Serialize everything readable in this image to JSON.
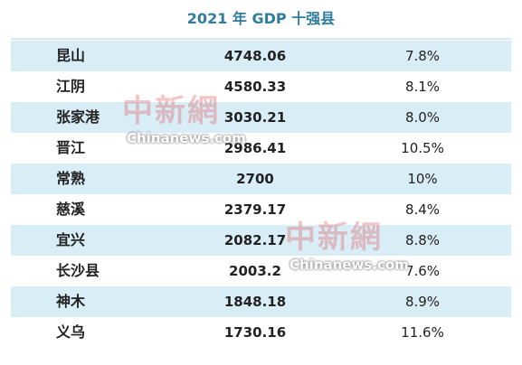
{
  "header": {
    "title": "2021 年 GDP 十强县"
  },
  "table": {
    "rows": [
      [
        "昆山",
        "4748.06",
        "7.8%"
      ],
      [
        "江阴",
        "4580.33",
        "8.1%"
      ],
      [
        "张家港",
        "3030.21",
        "8.0%"
      ],
      [
        "晋江",
        "2986.41",
        "10.5%"
      ],
      [
        "常熟",
        "2700",
        "10%"
      ],
      [
        "慈溪",
        "2379.17",
        "8.4%"
      ],
      [
        "宜兴",
        "2082.17",
        "8.8%"
      ],
      [
        "长沙县",
        "2003.2",
        "7.6%"
      ],
      [
        "神木",
        "1848.18",
        "8.9%"
      ],
      [
        "义乌",
        "1730.16",
        "11.6%"
      ]
    ]
  },
  "watermarks": [
    {
      "logo": "中新網",
      "site": "Chinanews.com"
    },
    {
      "logo": "中新網",
      "site": "Chinanews.com"
    }
  ]
}
